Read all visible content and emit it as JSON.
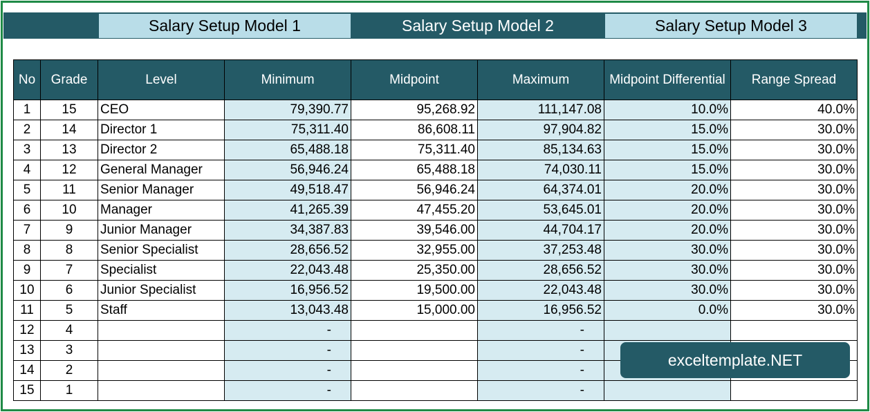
{
  "tabs": [
    {
      "label": "Salary Setup Model 1"
    },
    {
      "label": "Salary Setup Model 2"
    },
    {
      "label": "Salary Setup Model 3"
    }
  ],
  "table": {
    "headers": [
      "No",
      "Grade",
      "Level",
      "Minimum",
      "Midpoint",
      "Maximum",
      "Midpoint Differential",
      "Range Spread"
    ],
    "rows": [
      [
        "1",
        "15",
        "CEO",
        "79,390.77",
        "95,268.92",
        "111,147.08",
        "10.0%",
        "40.0%"
      ],
      [
        "2",
        "14",
        "Director 1",
        "75,311.40",
        "86,608.11",
        "97,904.82",
        "15.0%",
        "30.0%"
      ],
      [
        "3",
        "13",
        "Director 2",
        "65,488.18",
        "75,311.40",
        "85,134.63",
        "15.0%",
        "30.0%"
      ],
      [
        "4",
        "12",
        "General Manager",
        "56,946.24",
        "65,488.18",
        "74,030.11",
        "15.0%",
        "30.0%"
      ],
      [
        "5",
        "11",
        "Senior Manager",
        "49,518.47",
        "56,946.24",
        "64,374.01",
        "20.0%",
        "30.0%"
      ],
      [
        "6",
        "10",
        "Manager",
        "41,265.39",
        "47,455.20",
        "53,645.01",
        "20.0%",
        "30.0%"
      ],
      [
        "7",
        "9",
        "Junior Manager",
        "34,387.83",
        "39,546.00",
        "44,704.17",
        "20.0%",
        "30.0%"
      ],
      [
        "8",
        "8",
        "Senior Specialist",
        "28,656.52",
        "32,955.00",
        "37,253.48",
        "30.0%",
        "30.0%"
      ],
      [
        "9",
        "7",
        "Specialist",
        "22,043.48",
        "25,350.00",
        "28,656.52",
        "30.0%",
        "30.0%"
      ],
      [
        "10",
        "6",
        "Junior Specialist",
        "16,956.52",
        "19,500.00",
        "22,043.48",
        "30.0%",
        "30.0%"
      ],
      [
        "11",
        "5",
        "Staff",
        "13,043.48",
        "15,000.00",
        "16,956.52",
        "0.0%",
        "30.0%"
      ],
      [
        "12",
        "4",
        "",
        "-",
        "",
        "-",
        "",
        ""
      ],
      [
        "13",
        "3",
        "",
        "-",
        "",
        "-",
        "",
        ""
      ],
      [
        "14",
        "2",
        "",
        "-",
        "",
        "-",
        "",
        ""
      ],
      [
        "15",
        "1",
        "",
        "-",
        "",
        "-",
        "",
        ""
      ]
    ]
  },
  "brand": {
    "text": "exceltemplate.NET"
  },
  "colors": {
    "frame_border": "#1f8a46",
    "header_bg": "#245a66",
    "tab_light": "#b9dde8",
    "shaded_column": "#d6ebf1"
  }
}
